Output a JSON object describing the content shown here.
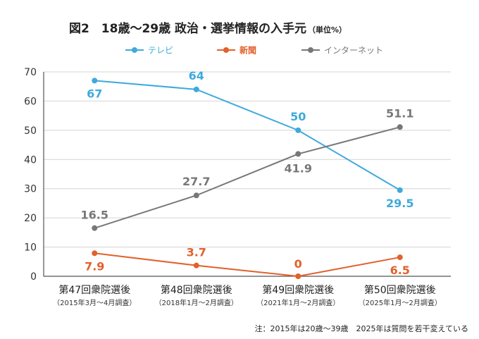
{
  "chart_data": {
    "type": "line",
    "title": "図2　18歳〜29歳 政治・選挙情報の入手元",
    "unit": "（単位%）",
    "categories": [
      "第47回衆院選後",
      "第48回衆院選後",
      "第49回衆院選後",
      "第50回衆院選後"
    ],
    "category_notes": [
      "（2015年3月〜4月調査）",
      "（2018年1月〜2月調査）",
      "（2021年1月〜2月調査）",
      "（2025年1月〜2月調査）"
    ],
    "series": [
      {
        "name": "テレビ",
        "values": [
          67,
          64,
          50,
          29.5
        ],
        "labels": [
          "67",
          "64",
          "50",
          "29.5"
        ],
        "color": "#3fa9dc"
      },
      {
        "name": "新聞",
        "values": [
          7.9,
          3.7,
          0,
          6.5
        ],
        "labels": [
          "7.9",
          "3.7",
          "0",
          "6.5"
        ],
        "color": "#e2612c"
      },
      {
        "name": "インターネット",
        "values": [
          16.5,
          27.7,
          41.9,
          51.1
        ],
        "labels": [
          "16.5",
          "27.7",
          "41.9",
          "51.1"
        ],
        "color": "#777777"
      }
    ],
    "ylim": [
      0,
      70
    ],
    "yticks": [
      0,
      10,
      20,
      30,
      40,
      50,
      60,
      70
    ],
    "grid": true,
    "legend": "top",
    "note": "注：2015年は20歳〜39歳　2025年は質問を若干変えている"
  }
}
